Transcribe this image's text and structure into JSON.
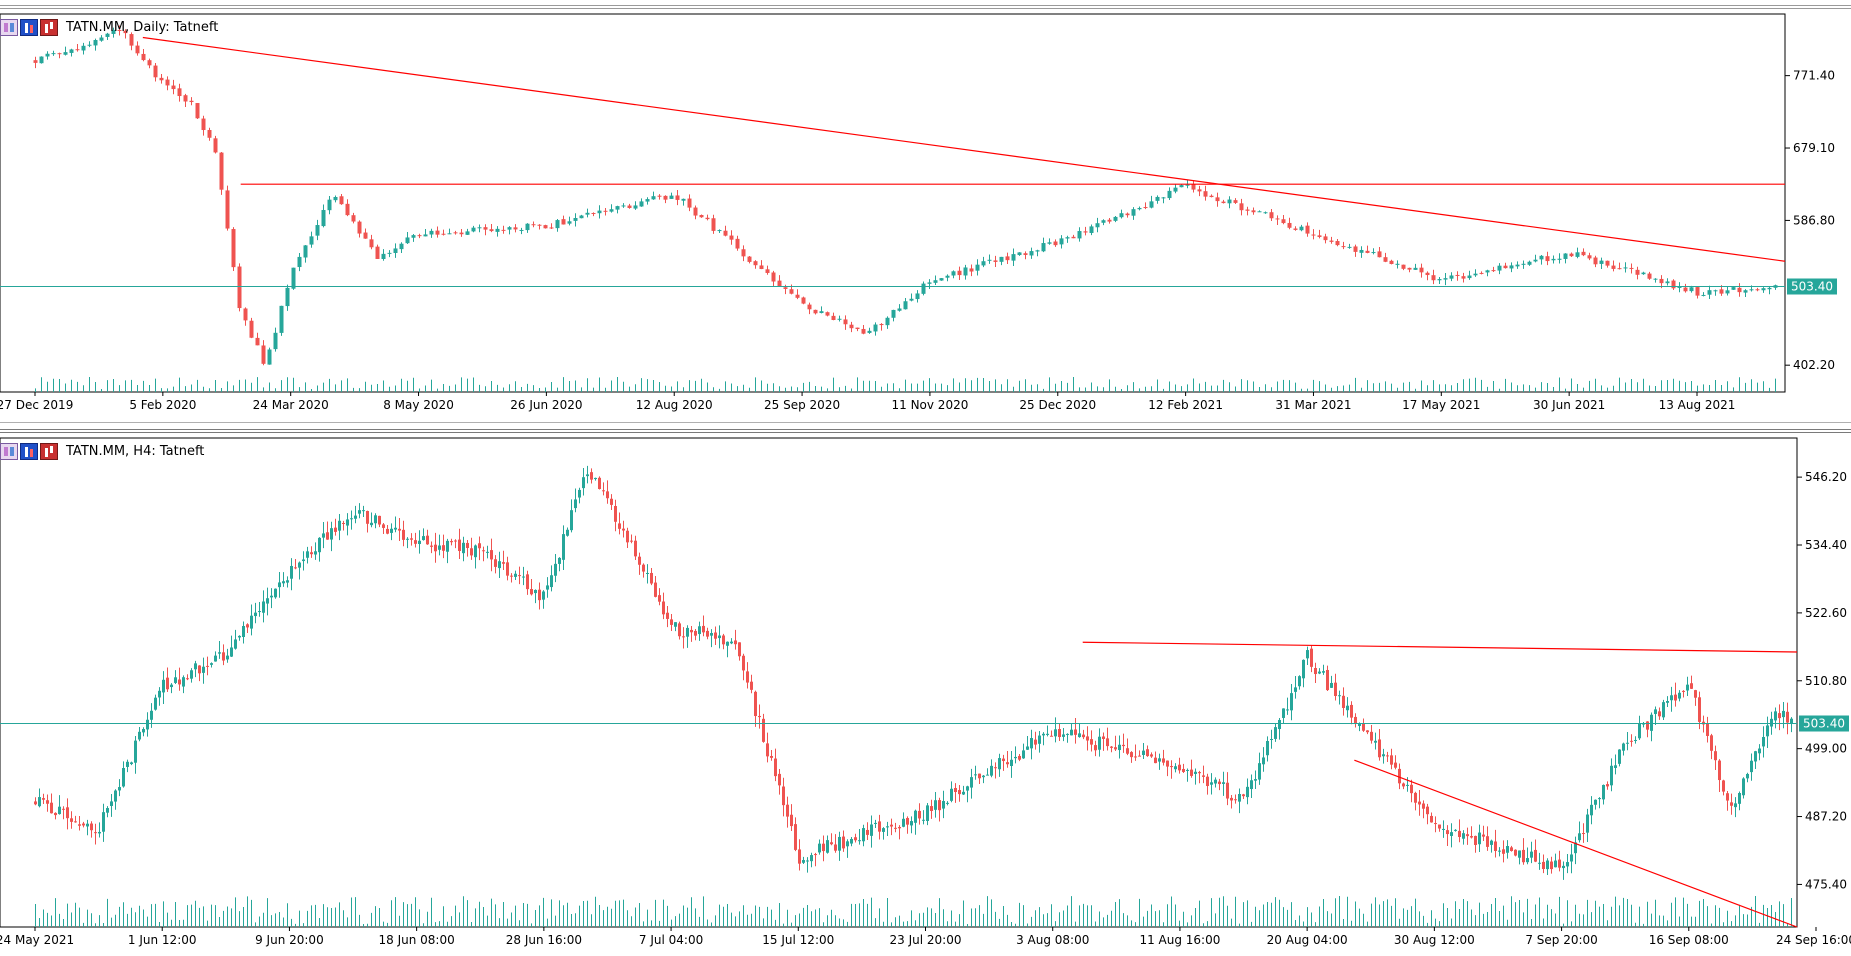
{
  "colors": {
    "background": "#ffffff",
    "bull": "#26a69a",
    "bear": "#ef5350",
    "trendline": "#ff0000",
    "price_line": "#26a69a",
    "axis": "#000000",
    "volume": "#26a69a"
  },
  "toolbar_icons": [
    "indicators-list-icon",
    "bar-chart-icon",
    "candlestick-chart-icon"
  ],
  "chart_data": [
    {
      "type": "candlestick",
      "symbol_title": "TATN.MM, Daily:  Tatneft",
      "timeframe": "Daily",
      "x_labels": [
        "27 Dec 2019",
        "5 Feb 2020",
        "24 Mar 2020",
        "8 May 2020",
        "26 Jun 2020",
        "12 Aug 2020",
        "25 Sep 2020",
        "11 Nov 2020",
        "25 Dec 2020",
        "12 Feb 2021",
        "31 Mar 2021",
        "17 May 2021",
        "30 Jun 2021",
        "13 Aug 2021"
      ],
      "y_ticks": [
        771.4,
        679.1,
        586.8,
        402.2
      ],
      "y_ticks_text": [
        "771.40",
        "679.10",
        "586.80",
        "402.20"
      ],
      "ylim": [
        368.0,
        850.0
      ],
      "current_price": 503.4,
      "current_price_text": "503.40",
      "resistance_level": 633.0,
      "trendline_start": {
        "date": "5 Feb 2020",
        "price": 820.0
      },
      "trendline_end": {
        "date": "13 Aug 2021",
        "price": 550.0
      },
      "series_path": [
        {
          "date": "27 Dec 2019",
          "close": 790
        },
        {
          "date": "5 Jan 2020",
          "close": 808
        },
        {
          "date": "20 Jan 2020",
          "close": 830
        },
        {
          "date": "5 Feb 2020",
          "close": 760
        },
        {
          "date": "25 Feb 2020",
          "close": 740
        },
        {
          "date": "10 Mar 2020",
          "close": 680
        },
        {
          "date": "16 Mar 2020",
          "close": 475
        },
        {
          "date": "20 Mar 2020",
          "close": 400
        },
        {
          "date": "24 Mar 2020",
          "close": 520
        },
        {
          "date": "1 Apr 2020",
          "close": 620
        },
        {
          "date": "15 Apr 2020",
          "close": 540
        },
        {
          "date": "8 May 2020",
          "close": 570
        },
        {
          "date": "26 Jun 2020",
          "close": 580
        },
        {
          "date": "12 Aug 2020",
          "close": 620
        },
        {
          "date": "25 Sep 2020",
          "close": 480
        },
        {
          "date": "15 Oct 2020",
          "close": 440
        },
        {
          "date": "11 Nov 2020",
          "close": 510
        },
        {
          "date": "25 Dec 2020",
          "close": 560
        },
        {
          "date": "12 Feb 2021",
          "close": 630
        },
        {
          "date": "31 Mar 2021",
          "close": 570
        },
        {
          "date": "17 May 2021",
          "close": 510
        },
        {
          "date": "30 Jun 2021",
          "close": 545
        },
        {
          "date": "13 Aug 2021",
          "close": 495
        },
        {
          "date": "24 Sep 2021",
          "close": 503
        }
      ]
    },
    {
      "type": "candlestick",
      "symbol_title": "TATN.MM, H4:  Tatneft",
      "timeframe": "H4",
      "x_labels": [
        "24 May 2021",
        "1 Jun 12:00",
        "9 Jun 20:00",
        "18 Jun 08:00",
        "28 Jun 16:00",
        "7 Jul 04:00",
        "15 Jul 12:00",
        "23 Jul 20:00",
        "3 Aug 08:00",
        "11 Aug 16:00",
        "20 Aug 04:00",
        "30 Aug 12:00",
        "7 Sep 20:00",
        "16 Sep 08:00",
        "24 Sep 16:00"
      ],
      "y_ticks": [
        546.2,
        534.4,
        522.6,
        510.8,
        499.0,
        487.2,
        475.4
      ],
      "y_ticks_text": [
        "546.20",
        "534.40",
        "522.60",
        "510.80",
        "499.00",
        "487.20",
        "475.40"
      ],
      "ylim": [
        468.0,
        553.0
      ],
      "current_price": 503.4,
      "current_price_text": "503.40",
      "resistance_line": [
        {
          "date": "3 Aug 08:00",
          "price": 517.5
        },
        {
          "date": "24 Sep 16:00",
          "price": 515.8
        }
      ],
      "downtrend_line": [
        {
          "date": "30 Aug 12:00",
          "price": 497.0
        },
        {
          "date": "24 Sep 16:00",
          "price": 468.0
        }
      ],
      "series_path": [
        {
          "date": "24 May 2021",
          "close": 490
        },
        {
          "date": "28 May 2021",
          "close": 485
        },
        {
          "date": "1 Jun 12:00",
          "close": 510
        },
        {
          "date": "5 Jun 2021",
          "close": 515
        },
        {
          "date": "9 Jun 20:00",
          "close": 530
        },
        {
          "date": "13 Jun 2021",
          "close": 540
        },
        {
          "date": "18 Jun 08:00",
          "close": 535
        },
        {
          "date": "23 Jun 2021",
          "close": 533
        },
        {
          "date": "28 Jun 16:00",
          "close": 525
        },
        {
          "date": "3 Jul 2021",
          "close": 548
        },
        {
          "date": "6 Jul 2021",
          "close": 535
        },
        {
          "date": "7 Jul 04:00",
          "close": 520
        },
        {
          "date": "12 Jul 2021",
          "close": 518
        },
        {
          "date": "15 Jul 12:00",
          "close": 480
        },
        {
          "date": "23 Jul 20:00",
          "close": 488
        },
        {
          "date": "3 Aug 08:00",
          "close": 502
        },
        {
          "date": "11 Aug 16:00",
          "close": 496
        },
        {
          "date": "16 Aug 2021",
          "close": 490
        },
        {
          "date": "20 Aug 04:00",
          "close": 515
        },
        {
          "date": "24 Aug 2021",
          "close": 500
        },
        {
          "date": "30 Aug 12:00",
          "close": 486
        },
        {
          "date": "7 Sep 20:00",
          "close": 478
        },
        {
          "date": "12 Sep 2021",
          "close": 500
        },
        {
          "date": "16 Sep 08:00",
          "close": 510
        },
        {
          "date": "19 Sep 2021",
          "close": 488
        },
        {
          "date": "21 Sep 2021",
          "close": 505
        },
        {
          "date": "24 Sep 16:00",
          "close": 503
        }
      ]
    }
  ]
}
